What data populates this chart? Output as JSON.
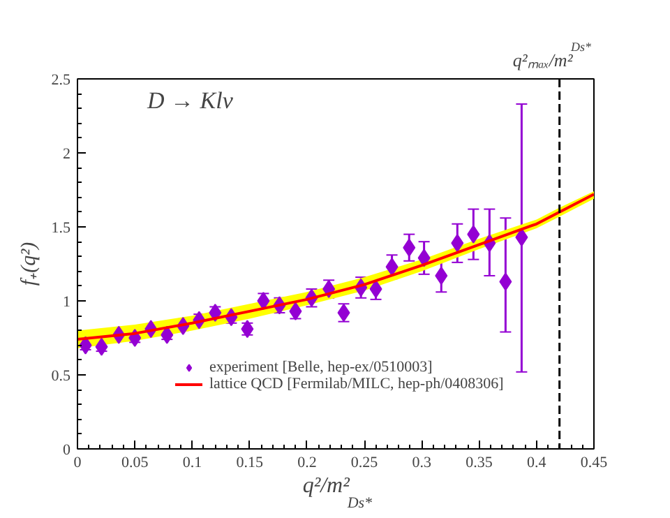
{
  "chart_data": {
    "type": "scatter",
    "xlabel": "q²/m²$_{Ds*}$",
    "ylabel": "f₊(q²)",
    "annotations": [
      "D → Klν"
    ],
    "xlim": [
      0,
      0.45
    ],
    "ylim": [
      0,
      2.5
    ],
    "xticks": [
      0,
      0.05,
      0.1,
      0.15,
      0.2,
      0.25,
      0.3,
      0.35,
      0.4,
      0.45
    ],
    "yticks": [
      0,
      0.5,
      1,
      1.5,
      2,
      2.5
    ],
    "grid": false,
    "legend": "bottom",
    "ref_lines": [
      {
        "axis": "x",
        "value": 0.42,
        "label": "q²ₘₐₓ/m²$_{Ds*}$",
        "line_style": "dashed",
        "color": "#000000"
      }
    ],
    "series": [
      {
        "name": "experiment [Belle, hep-ex/0510003]",
        "color": "#9400d3",
        "marker": "diamond",
        "x": [
          0.007,
          0.021,
          0.036,
          0.05,
          0.064,
          0.078,
          0.092,
          0.106,
          0.12,
          0.134,
          0.148,
          0.162,
          0.176,
          0.19,
          0.204,
          0.219,
          0.232,
          0.247,
          0.26,
          0.274,
          0.289,
          0.302,
          0.317,
          0.331,
          0.345,
          0.359,
          0.373,
          0.387
        ],
        "values": [
          0.7,
          0.69,
          0.77,
          0.75,
          0.81,
          0.77,
          0.83,
          0.87,
          0.92,
          0.89,
          0.81,
          1.0,
          0.97,
          0.93,
          1.02,
          1.08,
          0.92,
          1.09,
          1.08,
          1.23,
          1.36,
          1.29,
          1.17,
          1.39,
          1.45,
          1.39,
          1.13,
          1.43
        ],
        "errors": [
          0.03,
          0.03,
          0.03,
          0.03,
          0.03,
          0.03,
          0.03,
          0.04,
          0.04,
          0.04,
          0.04,
          0.05,
          0.05,
          0.05,
          0.06,
          0.06,
          0.06,
          0.07,
          0.07,
          0.08,
          0.09,
          0.11,
          0.11,
          0.13,
          0.17,
          [
            1.17,
            1.62
          ],
          [
            0.79,
            1.56
          ],
          [
            0.52,
            2.33
          ]
        ]
      },
      {
        "name": "lattice QCD [Fermilab/MILC, hep-ph/0408306]",
        "type": "line",
        "color": "#ff0000",
        "x": [
          0,
          0.05,
          0.1,
          0.15,
          0.2,
          0.25,
          0.3,
          0.35,
          0.4,
          0.42,
          0.45
        ],
        "values": [
          0.74,
          0.78,
          0.85,
          0.93,
          1.01,
          1.11,
          1.24,
          1.38,
          1.52,
          1.6,
          1.72
        ],
        "lower": [
          0.68,
          0.73,
          0.8,
          0.88,
          0.97,
          1.07,
          1.2,
          1.35,
          1.49,
          1.57,
          1.69
        ],
        "upper": [
          0.8,
          0.84,
          0.9,
          0.98,
          1.06,
          1.16,
          1.28,
          1.42,
          1.55,
          1.63,
          1.74
        ]
      }
    ]
  }
}
